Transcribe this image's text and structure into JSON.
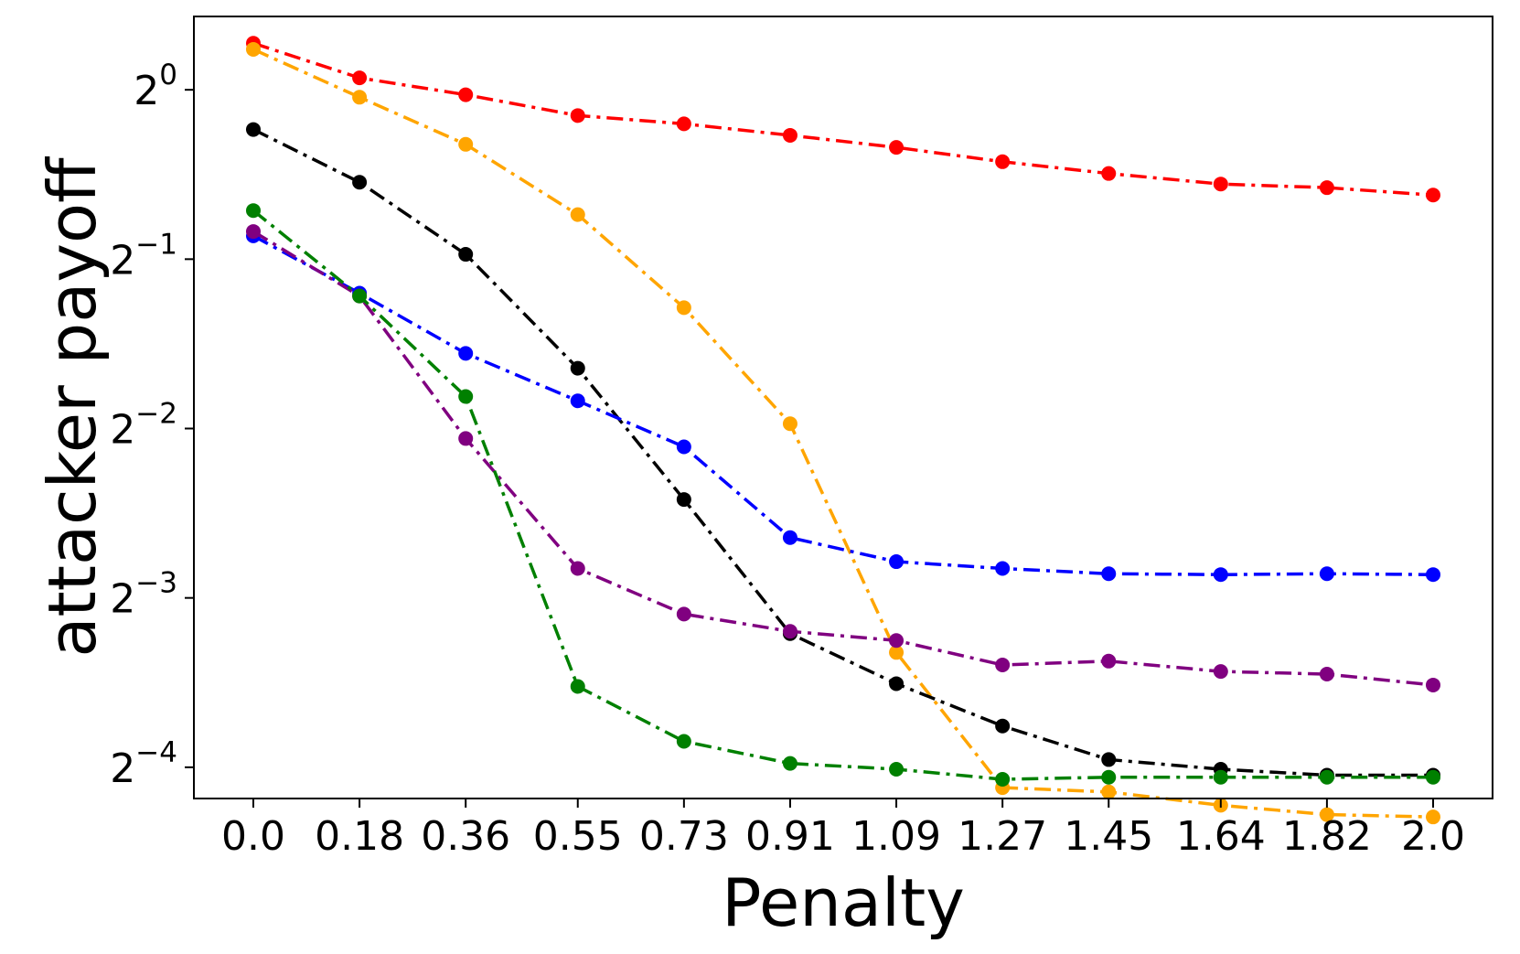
{
  "chart_data": {
    "type": "line",
    "title": "",
    "xlabel": "Penalty",
    "ylabel": "attacker payoff",
    "yscale": "log2",
    "ylim": [
      0.055,
      1.35
    ],
    "x": [
      0.0,
      0.18,
      0.36,
      0.55,
      0.73,
      0.91,
      1.09,
      1.27,
      1.45,
      1.64,
      1.82,
      2.0
    ],
    "x_tick_labels": [
      "0.0",
      "0.18",
      "0.36",
      "0.55",
      "0.73",
      "0.91",
      "1.09",
      "1.27",
      "1.45",
      "1.64",
      "1.82",
      "2.0"
    ],
    "y_ticks": [
      {
        "value": 1,
        "base": "2",
        "exp": "0"
      },
      {
        "value": 0.5,
        "base": "2",
        "exp": "−1"
      },
      {
        "value": 0.25,
        "base": "2",
        "exp": "−2"
      },
      {
        "value": 0.125,
        "base": "2",
        "exp": "−3"
      },
      {
        "value": 0.0625,
        "base": "2",
        "exp": "−4"
      }
    ],
    "grid": false,
    "legend": false,
    "series": [
      {
        "color": "#ff0000",
        "values": [
          1.21,
          1.05,
          0.98,
          0.9,
          0.87,
          0.83,
          0.79,
          0.745,
          0.71,
          0.68,
          0.67,
          0.65
        ]
      },
      {
        "color": "#ffa500",
        "values": [
          1.18,
          0.97,
          0.8,
          0.6,
          0.41,
          0.255,
          0.1,
          0.0575,
          0.0565,
          0.0535,
          0.0515,
          0.051
        ]
      },
      {
        "color": "#000000",
        "values": [
          0.85,
          0.685,
          0.51,
          0.32,
          0.187,
          0.108,
          0.088,
          0.074,
          0.0645,
          0.062,
          0.0605,
          0.0605
        ]
      },
      {
        "color": "#0000ff",
        "values": [
          0.55,
          0.435,
          0.34,
          0.28,
          0.232,
          0.16,
          0.145,
          0.141,
          0.138,
          0.1375,
          0.138,
          0.1375
        ]
      },
      {
        "color": "#800080",
        "values": [
          0.56,
          0.43,
          0.24,
          0.141,
          0.117,
          0.109,
          0.105,
          0.095,
          0.0965,
          0.0925,
          0.0915,
          0.0875
        ]
      },
      {
        "color": "#008000",
        "values": [
          0.61,
          0.43,
          0.285,
          0.087,
          0.0695,
          0.0635,
          0.062,
          0.0595,
          0.06,
          0.06,
          0.06,
          0.06
        ]
      }
    ]
  }
}
